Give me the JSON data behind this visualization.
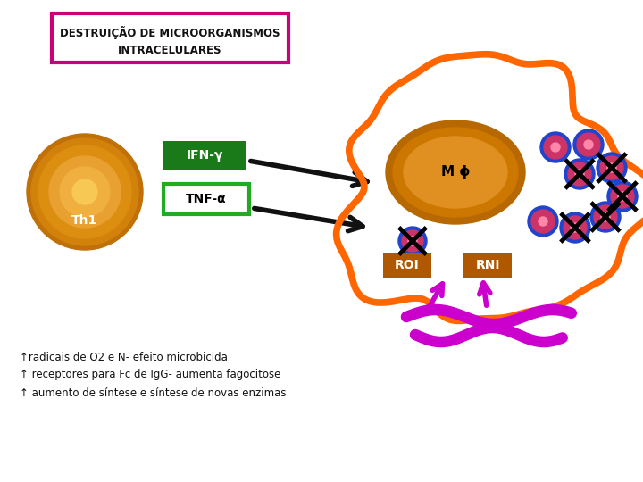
{
  "title_line1": "DESTRUIÇÃO DE MICROORGANISMOS",
  "title_line2": "INTRACELULARES",
  "title_box_color": "#cc0077",
  "th1_label": "Th1",
  "ifn_label": "IFN-γ",
  "tnf_label": "TNF-α",
  "mphi_label": "M ϕ",
  "roi_label": "ROI",
  "rni_label": "RNI",
  "cell_color": "#d2820a",
  "cell_inner_color": "#e8a030",
  "cell_highlight": "#f0c060",
  "macro_color": "#cc7700",
  "macro_inner": "#e09020",
  "orange_border": "#ff6600",
  "green_dark": "#1a7a1a",
  "green_light": "#22aa22",
  "arrow_color": "#111111",
  "magenta_color": "#cc00cc",
  "roi_rni_color": "#b05800",
  "microbe_pink": "#cc3366",
  "microbe_ring": "#2244cc",
  "bullet1": "↑radicais de O2 e N- efeito microbicida",
  "bullet2": "↑ receptores para Fc de IgG- aumenta fagocitose",
  "bullet3": "↑ aumento de síntese e síntese de novas enzimas",
  "text_color": "#111111"
}
